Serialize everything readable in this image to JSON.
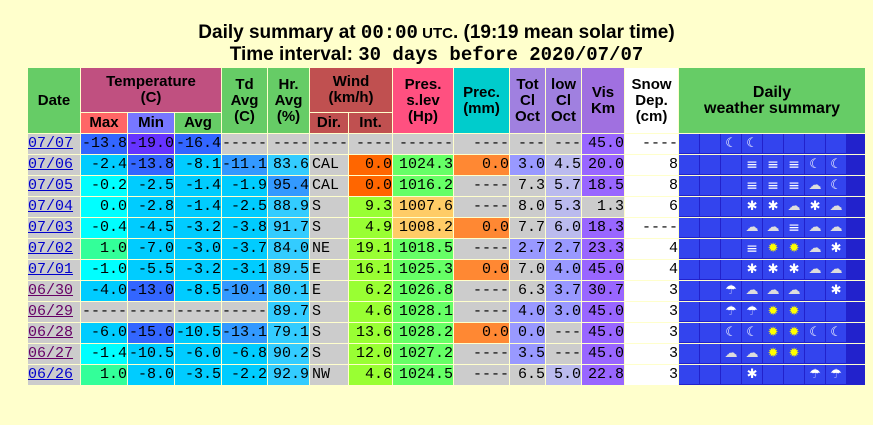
{
  "title_line1_a": "Daily summary at ",
  "title_line1_b": "00:00",
  "title_line1_c": " UTC",
  "title_line1_d": ". (19:19 mean solar time)",
  "title_line2_a": "Time interval: ",
  "title_line2_b": "30 days before 2020/07/07",
  "headers": {
    "date": "Date",
    "temp": "Temperature",
    "temp_unit": "(C)",
    "td": "Td",
    "td2": "Avg",
    "td3": "(C)",
    "hr": "Hr.",
    "hr2": "Avg",
    "hr3": "(%)",
    "wind": "Wind",
    "wind_unit": "(km/h)",
    "pres": "Pres.",
    "pres2": "s.lev",
    "pres3": "(Hp)",
    "prec": "Prec.",
    "prec2": "(mm)",
    "totcl": "Tot",
    "totcl2": "Cl",
    "totcl3": "Oct",
    "lowcl": "low",
    "lowcl2": "Cl",
    "lowcl3": "Oct",
    "vis": "Vis",
    "vis2": "Km",
    "snow": "Snow",
    "snow2": "Dep.",
    "snow3": "(cm)",
    "daily": "Daily",
    "daily2": "weather summary",
    "max": "Max",
    "min": "Min",
    "avg": "Avg",
    "dir": "Dir.",
    "int": "Int."
  },
  "colors": {
    "bg": "#ffffcc",
    "grey": "#cccccc",
    "wx_bg": "#2222cc"
  },
  "rows": [
    {
      "date": "07/07",
      "visited": false,
      "max": "-13.8",
      "min": "-19.0",
      "avg": "-16.4",
      "td": "-----",
      "hr": "----",
      "dir": "----",
      "int": "----",
      "pres": "------",
      "prec": "----",
      "tot": "---",
      "low": "---",
      "vis": "45.0",
      "snow": "----",
      "c": {
        "max": "#3366ff",
        "min": "#6633ff",
        "avg": "#3366ff",
        "td": "#cccccc",
        "hr": "#cccccc",
        "int": "#cccccc",
        "pres": "#cccccc",
        "prec": "#cccccc",
        "tot": "#cccccc",
        "low": "#cccccc",
        "vis": "#9966ff",
        "snow": "#ffffff"
      },
      "icons": [
        "e",
        "e",
        "moon",
        "moon",
        "e",
        "e",
        "e",
        "e"
      ]
    },
    {
      "date": "07/06",
      "visited": false,
      "max": "-2.4",
      "min": "-13.8",
      "avg": "-8.1",
      "td": "-11.1",
      "hr": "83.6",
      "dir": "CAL",
      "int": "0.0",
      "pres": "1024.3",
      "prec": "0.0",
      "tot": "3.0",
      "low": "4.5",
      "vis": "20.0",
      "snow": "8",
      "c": {
        "max": "#00ccff",
        "min": "#3366ff",
        "avg": "#00ccff",
        "td": "#3399ff",
        "hr": "#33ccff",
        "int": "#ff6600",
        "pres": "#66ff66",
        "prec": "#ff8833",
        "tot": "#9999ff",
        "low": "#bbbbee",
        "vis": "#9966ff",
        "snow": "#ffffff"
      },
      "icons": [
        "e",
        "e",
        "e",
        "fog",
        "fog",
        "fog",
        "moon",
        "moon"
      ]
    },
    {
      "date": "07/05",
      "visited": false,
      "max": "-0.2",
      "min": "-2.5",
      "avg": "-1.4",
      "td": "-1.9",
      "hr": "95.4",
      "dir": "CAL",
      "int": "0.0",
      "pres": "1016.2",
      "prec": "----",
      "tot": "7.3",
      "low": "5.7",
      "vis": "18.5",
      "snow": "8",
      "c": {
        "max": "#00ffff",
        "min": "#00ccff",
        "avg": "#00ccff",
        "td": "#00ccff",
        "hr": "#3399ff",
        "int": "#ff6600",
        "pres": "#66ff66",
        "prec": "#cccccc",
        "tot": "#cccccc",
        "low": "#bbbbee",
        "vis": "#9966ff",
        "snow": "#ffffff"
      },
      "icons": [
        "e",
        "e",
        "e",
        "fog",
        "fog",
        "fog",
        "cloud",
        "moon"
      ]
    },
    {
      "date": "07/04",
      "visited": false,
      "max": "0.0",
      "min": "-2.8",
      "avg": "-1.4",
      "td": "-2.5",
      "hr": "88.9",
      "dir": "S",
      "int": "9.3",
      "pres": "1007.6",
      "prec": "----",
      "tot": "8.0",
      "low": "5.3",
      "vis": "1.3",
      "snow": "6",
      "c": {
        "max": "#00ffff",
        "min": "#00ccff",
        "avg": "#00ccff",
        "td": "#00ccff",
        "hr": "#33ccff",
        "int": "#99ff33",
        "pres": "#ffcc66",
        "prec": "#cccccc",
        "tot": "#cccccc",
        "low": "#bbbbee",
        "vis": "#cccccc",
        "snow": "#ffffff"
      },
      "icons": [
        "e",
        "e",
        "e",
        "snow",
        "snow",
        "cloud",
        "snow",
        "cloud"
      ]
    },
    {
      "date": "07/03",
      "visited": false,
      "max": "-0.4",
      "min": "-4.5",
      "avg": "-3.2",
      "td": "-3.8",
      "hr": "91.7",
      "dir": "S",
      "int": "4.9",
      "pres": "1008.2",
      "prec": "0.0",
      "tot": "7.7",
      "low": "6.0",
      "vis": "18.3",
      "snow": "----",
      "c": {
        "max": "#00ffff",
        "min": "#00ccff",
        "avg": "#00ccff",
        "td": "#00ccff",
        "hr": "#33ccff",
        "int": "#99ff33",
        "pres": "#ffcc66",
        "prec": "#ff8833",
        "tot": "#cccccc",
        "low": "#bbbbee",
        "vis": "#9966ff",
        "snow": "#ffffff"
      },
      "icons": [
        "e",
        "e",
        "e",
        "cloud",
        "cloud",
        "fog",
        "cloud",
        "cloud"
      ]
    },
    {
      "date": "07/02",
      "visited": false,
      "max": "1.0",
      "min": "-7.0",
      "avg": "-3.0",
      "td": "-3.7",
      "hr": "84.0",
      "dir": "NE",
      "int": "19.1",
      "pres": "1018.5",
      "prec": "----",
      "tot": "2.7",
      "low": "2.7",
      "vis": "23.3",
      "snow": "4",
      "c": {
        "max": "#33ff99",
        "min": "#00ccff",
        "avg": "#00ccff",
        "td": "#00ccff",
        "hr": "#33ccff",
        "int": "#99ff33",
        "pres": "#66ff66",
        "prec": "#cccccc",
        "tot": "#9999ff",
        "low": "#9999ff",
        "vis": "#9966ff",
        "snow": "#ffffff"
      },
      "icons": [
        "e",
        "e",
        "e",
        "fog",
        "sun",
        "sun",
        "cloud",
        "snow"
      ]
    },
    {
      "date": "07/01",
      "visited": false,
      "max": "-1.0",
      "min": "-5.5",
      "avg": "-3.2",
      "td": "-3.1",
      "hr": "89.5",
      "dir": "E",
      "int": "16.1",
      "pres": "1025.3",
      "prec": "0.0",
      "tot": "7.0",
      "low": "4.0",
      "vis": "45.0",
      "snow": "4",
      "c": {
        "max": "#00ffff",
        "min": "#00ccff",
        "avg": "#00ccff",
        "td": "#00ccff",
        "hr": "#33ccff",
        "int": "#99ff33",
        "pres": "#66ff66",
        "prec": "#ff8833",
        "tot": "#cccccc",
        "low": "#9999ff",
        "vis": "#9966ff",
        "snow": "#ffffff"
      },
      "icons": [
        "e",
        "e",
        "e",
        "snow",
        "snow",
        "snow",
        "cloud",
        "cloud"
      ]
    },
    {
      "date": "06/30",
      "visited": true,
      "max": "-4.0",
      "min": "-13.0",
      "avg": "-8.5",
      "td": "-10.1",
      "hr": "80.1",
      "dir": "E",
      "int": "6.2",
      "pres": "1026.8",
      "prec": "----",
      "tot": "6.3",
      "low": "3.7",
      "vis": "30.7",
      "snow": "3",
      "c": {
        "max": "#00ccff",
        "min": "#3366ff",
        "avg": "#00ccff",
        "td": "#3399ff",
        "hr": "#33ccff",
        "int": "#99ff33",
        "pres": "#66ff66",
        "prec": "#cccccc",
        "tot": "#cccccc",
        "low": "#9999ff",
        "vis": "#9966ff",
        "snow": "#ffffff"
      },
      "icons": [
        "e",
        "e",
        "thun",
        "cloud",
        "cloud",
        "cloud",
        "e",
        "snow"
      ]
    },
    {
      "date": "06/29",
      "visited": true,
      "max": "-----",
      "min": "-----",
      "avg": "-----",
      "td": "-----",
      "hr": "89.7",
      "dir": "S",
      "int": "4.6",
      "pres": "1028.1",
      "prec": "----",
      "tot": "4.0",
      "low": "3.0",
      "vis": "45.0",
      "snow": "3",
      "c": {
        "max": "#cccccc",
        "min": "#cccccc",
        "avg": "#cccccc",
        "td": "#cccccc",
        "hr": "#33ccff",
        "int": "#99ff33",
        "pres": "#66ff66",
        "prec": "#cccccc",
        "tot": "#9999ff",
        "low": "#9999ff",
        "vis": "#9966ff",
        "snow": "#ffffff"
      },
      "icons": [
        "e",
        "e",
        "thun",
        "thun",
        "sun",
        "sun",
        "e",
        "e"
      ]
    },
    {
      "date": "06/28",
      "visited": true,
      "max": "-6.0",
      "min": "-15.0",
      "avg": "-10.5",
      "td": "-13.1",
      "hr": "79.1",
      "dir": "S",
      "int": "13.6",
      "pres": "1028.2",
      "prec": "0.0",
      "tot": "0.0",
      "low": "---",
      "vis": "45.0",
      "snow": "3",
      "c": {
        "max": "#00ccff",
        "min": "#3366ff",
        "avg": "#00ccff",
        "td": "#3399ff",
        "hr": "#33ccff",
        "int": "#99ff33",
        "pres": "#66ff66",
        "prec": "#ff8833",
        "tot": "#9999ff",
        "low": "#cccccc",
        "vis": "#9966ff",
        "snow": "#ffffff"
      },
      "icons": [
        "e",
        "e",
        "moon",
        "moon",
        "sun",
        "sun",
        "moon",
        "moon"
      ]
    },
    {
      "date": "06/27",
      "visited": true,
      "max": "-1.4",
      "min": "-10.5",
      "avg": "-6.0",
      "td": "-6.8",
      "hr": "90.2",
      "dir": "S",
      "int": "12.0",
      "pres": "1027.2",
      "prec": "----",
      "tot": "3.5",
      "low": "---",
      "vis": "45.0",
      "snow": "3",
      "c": {
        "max": "#00ffff",
        "min": "#00ccff",
        "avg": "#00ccff",
        "td": "#00ccff",
        "hr": "#33ccff",
        "int": "#99ff33",
        "pres": "#66ff66",
        "prec": "#cccccc",
        "tot": "#9999ff",
        "low": "#cccccc",
        "vis": "#9966ff",
        "snow": "#ffffff"
      },
      "icons": [
        "e",
        "e",
        "cloud",
        "cloud",
        "sun",
        "sun",
        "e",
        "e"
      ]
    },
    {
      "date": "06/26",
      "visited": false,
      "max": "1.0",
      "min": "-8.0",
      "avg": "-3.5",
      "td": "-2.2",
      "hr": "92.9",
      "dir": "NW",
      "int": "4.6",
      "pres": "1024.5",
      "prec": "----",
      "tot": "6.5",
      "low": "5.0",
      "vis": "22.8",
      "snow": "3",
      "c": {
        "max": "#33ff99",
        "min": "#00ccff",
        "avg": "#00ccff",
        "td": "#00ccff",
        "hr": "#33ccff",
        "int": "#99ff33",
        "pres": "#66ff66",
        "prec": "#cccccc",
        "tot": "#cccccc",
        "low": "#bbbbee",
        "vis": "#9966ff",
        "snow": "#ffffff"
      },
      "icons": [
        "e",
        "e",
        "e",
        "snow",
        "e",
        "e",
        "thun",
        "thun"
      ]
    }
  ]
}
